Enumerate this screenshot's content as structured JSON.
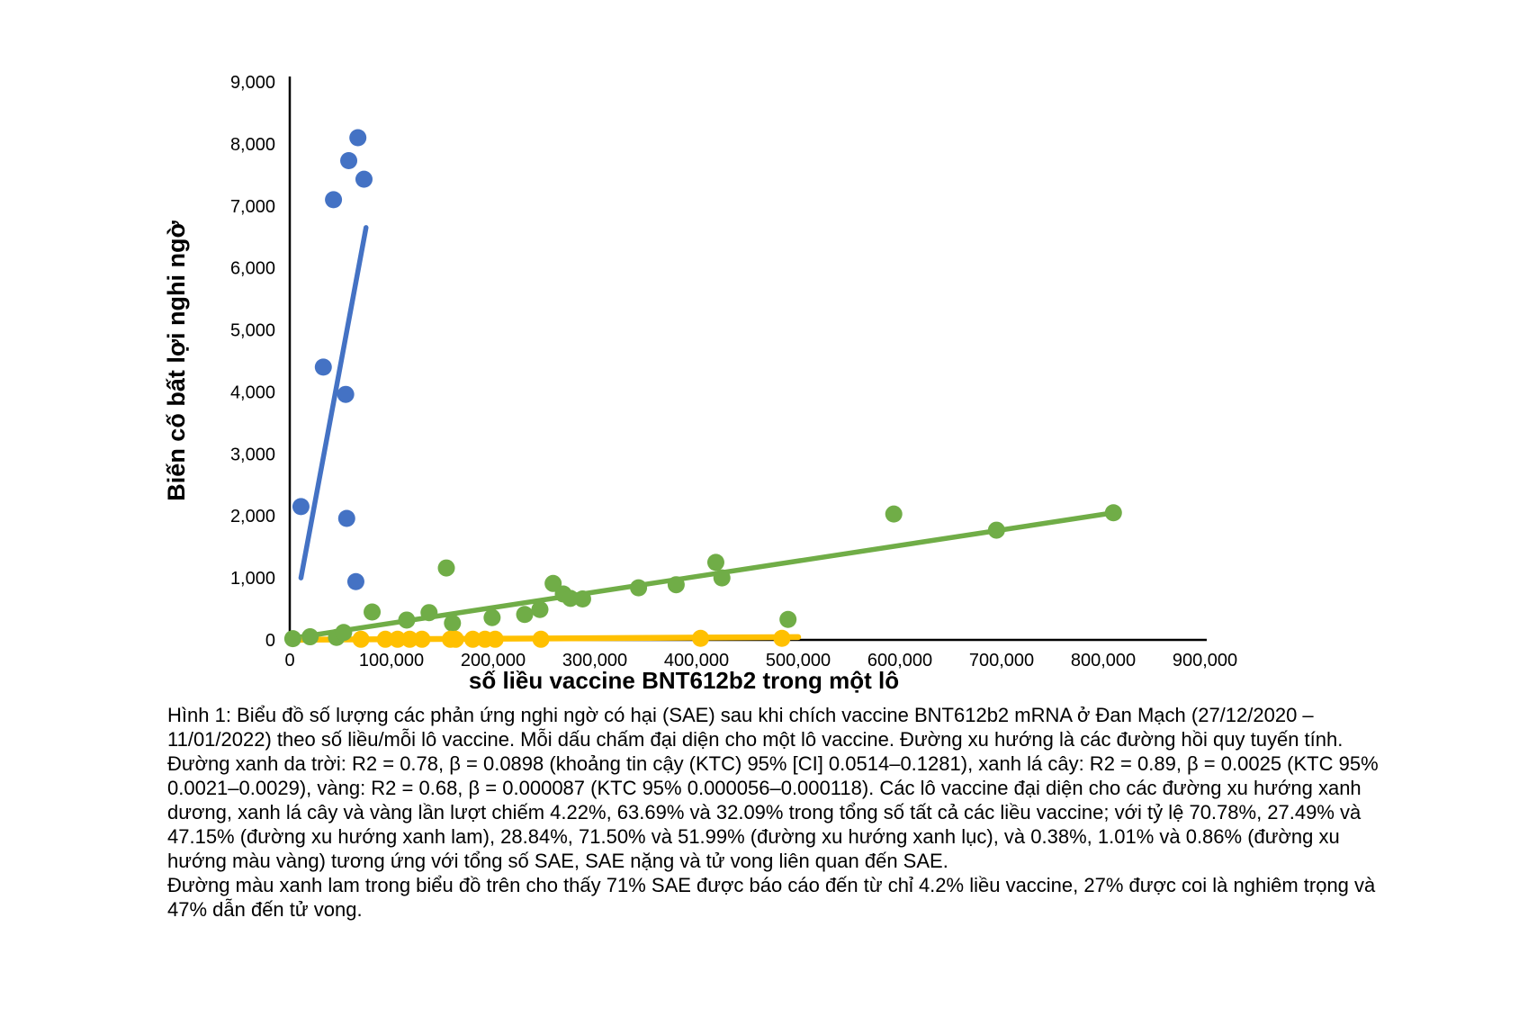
{
  "chart_data": {
    "type": "scatter",
    "title": "",
    "xlabel": "số liều vaccine BNT612b2 trong một lô",
    "ylabel": "Biến cố bất lợi nghi ngờ",
    "xlim": [
      0,
      900000
    ],
    "ylim": [
      0,
      9000
    ],
    "grid": false,
    "legend": "none",
    "x_tick_values": [
      0,
      100000,
      200000,
      300000,
      400000,
      500000,
      600000,
      700000,
      800000,
      900000
    ],
    "x_tick_labels": [
      "0",
      "100,000",
      "200,000",
      "300,000",
      "400,000",
      "500,000",
      "600,000",
      "700,000",
      "800,000",
      "900,000"
    ],
    "y_tick_values": [
      0,
      1000,
      2000,
      3000,
      4000,
      5000,
      6000,
      7000,
      8000,
      9000
    ],
    "y_tick_labels": [
      "0",
      "1,000",
      "2,000",
      "3,000",
      "4,000",
      "5,000",
      "6,000",
      "7,000",
      "8,000",
      "9,000"
    ],
    "series": [
      {
        "name": "xanh duong (blue batches)",
        "color": "#4472C4",
        "R2": 0.78,
        "beta": 0.0898,
        "points": [
          [
            11000,
            2150
          ],
          [
            33000,
            4400
          ],
          [
            43000,
            7100
          ],
          [
            55000,
            3960
          ],
          [
            56000,
            1960
          ],
          [
            58000,
            7730
          ],
          [
            65000,
            940
          ],
          [
            67000,
            8100
          ],
          [
            73000,
            7430
          ]
        ],
        "trendline": {
          "from": [
            11000,
            1000
          ],
          "to": [
            75000,
            6650
          ]
        }
      },
      {
        "name": "xanh la cay (green batches)",
        "color": "#70AD47",
        "R2": 0.89,
        "beta": 0.0025,
        "points": [
          [
            3000,
            20
          ],
          [
            20000,
            50
          ],
          [
            46000,
            40
          ],
          [
            53000,
            120
          ],
          [
            81000,
            450
          ],
          [
            115000,
            320
          ],
          [
            137000,
            440
          ],
          [
            154000,
            1160
          ],
          [
            160000,
            270
          ],
          [
            199000,
            360
          ],
          [
            231000,
            410
          ],
          [
            246000,
            490
          ],
          [
            259000,
            910
          ],
          [
            269000,
            740
          ],
          [
            276000,
            670
          ],
          [
            288000,
            660
          ],
          [
            343000,
            840
          ],
          [
            380000,
            890
          ],
          [
            419000,
            1250
          ],
          [
            425000,
            1000
          ],
          [
            490000,
            330
          ],
          [
            594000,
            2030
          ],
          [
            695000,
            1770
          ],
          [
            810000,
            2050
          ]
        ],
        "trendline": {
          "from": [
            0,
            20
          ],
          "to": [
            810000,
            2050
          ]
        }
      },
      {
        "name": "vang (yellow batches)",
        "color": "#FFC000",
        "R2": 0.68,
        "beta": 8.7e-05,
        "points": [
          [
            70000,
            10
          ],
          [
            94000,
            10
          ],
          [
            106000,
            10
          ],
          [
            118000,
            10
          ],
          [
            130000,
            10
          ],
          [
            158000,
            10
          ],
          [
            163000,
            10
          ],
          [
            180000,
            10
          ],
          [
            192000,
            10
          ],
          [
            202000,
            10
          ],
          [
            247000,
            10
          ],
          [
            404000,
            25
          ],
          [
            484000,
            25
          ]
        ],
        "trendline": {
          "from": [
            0,
            2
          ],
          "to": [
            500000,
            45
          ]
        }
      }
    ]
  },
  "caption": {
    "p1": "Hình 1: Biểu đồ số lượng các phản ứng nghi ngờ có hại (SAE) sau khi chích vaccine BNT612b2 mRNA ở Đan Mạch (27/12/2020 – 11/01/2022) theo số liều/mỗi lô vaccine. Mỗi dấu chấm đại diện cho một lô vaccine. Đường xu hướng là các đường hồi quy tuyến tính. Đường xanh da trời: R2 = 0.78, β = 0.0898 (khoảng tin cậy (KTC) 95% [CI] 0.0514–0.1281), xanh lá cây: R2 = 0.89, β = 0.0025 (KTC 95% 0.0021–0.0029), vàng: R2 = 0.68, β = 0.000087 (KTC 95% 0.000056–0.000118). Các lô vaccine đại diện cho các đường xu hướng xanh dương, xanh lá cây và vàng lần lượt chiếm 4.22%, 63.69% và 32.09% trong tổng số tất cả các liều vaccine; với tỷ lệ 70.78%, 27.49% và 47.15% (đường xu hướng xanh lam), 28.84%, 71.50% và 51.99% (đường xu hướng xanh lục), và 0.38%, 1.01% và 0.86% (đường xu hướng màu vàng) tương ứng với tổng số SAE, SAE nặng và tử vong liên quan đến SAE.",
    "p2": "Đường màu xanh lam trong biểu đồ trên cho thấy 71% SAE được báo cáo đến từ chỉ 4.2% liều vaccine, 27% được coi là nghiêm trọng và 47% dẫn đến tử vong."
  }
}
